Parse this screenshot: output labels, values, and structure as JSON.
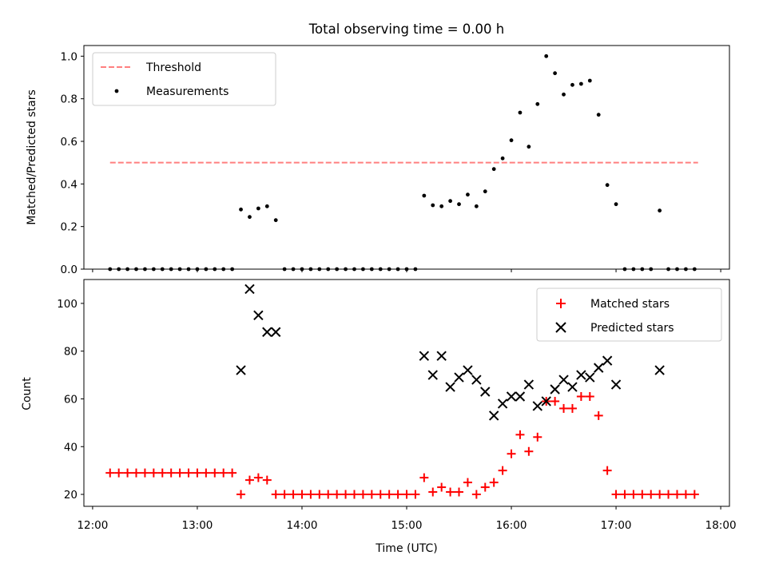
{
  "chart_data": [
    {
      "type": "scatter",
      "title": "Total observing time = 0.00 h",
      "xlabel": "",
      "ylabel": "Matched/Predicted stars",
      "ylim": [
        0,
        1.05
      ],
      "yticks": [
        "0.0",
        "0.2",
        "0.4",
        "0.6",
        "0.8",
        "1.0"
      ],
      "grid": false,
      "legend": "top-left",
      "threshold": {
        "name": "Threshold",
        "y": 0.5,
        "x_start": "12:10",
        "x_end": "17:47",
        "color": "#ff7f7f"
      },
      "series": [
        {
          "name": "Measurements",
          "color": "#000000",
          "x": [
            "12:10",
            "12:15",
            "12:20",
            "12:25",
            "12:30",
            "12:35",
            "12:40",
            "12:45",
            "12:50",
            "12:55",
            "13:00",
            "13:05",
            "13:10",
            "13:15",
            "13:20",
            "13:25",
            "13:30",
            "13:35",
            "13:40",
            "13:45",
            "13:50",
            "13:55",
            "14:00",
            "14:05",
            "14:10",
            "14:15",
            "14:20",
            "14:25",
            "14:30",
            "14:35",
            "14:40",
            "14:45",
            "14:50",
            "14:55",
            "15:00",
            "15:05",
            "15:10",
            "15:15",
            "15:20",
            "15:25",
            "15:30",
            "15:35",
            "15:40",
            "15:45",
            "15:50",
            "15:55",
            "16:00",
            "16:05",
            "16:10",
            "16:15",
            "16:20",
            "16:25",
            "16:30",
            "16:35",
            "16:40",
            "16:45",
            "16:50",
            "16:55",
            "17:00",
            "17:05",
            "17:10",
            "17:15",
            "17:20",
            "17:25",
            "17:30",
            "17:35",
            "17:40",
            "17:45"
          ],
          "values": [
            0,
            0,
            0,
            0,
            0,
            0,
            0,
            0,
            0,
            0,
            0,
            0,
            0,
            0,
            0,
            0.28,
            0.245,
            0.285,
            0.295,
            0.23,
            0,
            0,
            0,
            0,
            0,
            0,
            0,
            0,
            0,
            0,
            0,
            0,
            0,
            0,
            0,
            0,
            0.345,
            0.3,
            0.295,
            0.32,
            0.305,
            0.35,
            0.295,
            0.365,
            0.47,
            0.52,
            0.605,
            0.735,
            0.575,
            0.775,
            1.0,
            0.92,
            0.82,
            0.865,
            0.87,
            0.885,
            0.725,
            0.395,
            0.305,
            0,
            0,
            0,
            0,
            0.275,
            0,
            0,
            0,
            0
          ]
        }
      ]
    },
    {
      "type": "scatter",
      "title": "",
      "xlabel": "Time (UTC)",
      "ylabel": "Count",
      "ylim": [
        15,
        110
      ],
      "yticks": [
        "20",
        "40",
        "60",
        "80",
        "100"
      ],
      "xticks": [
        "12:00",
        "13:00",
        "14:00",
        "15:00",
        "16:00",
        "17:00",
        "18:00"
      ],
      "xlim": [
        "11:55",
        "18:05"
      ],
      "grid": false,
      "legend": "top-right",
      "series": [
        {
          "name": "Matched stars",
          "marker": "+",
          "color": "#ff0000",
          "x": [
            "12:10",
            "12:15",
            "12:20",
            "12:25",
            "12:30",
            "12:35",
            "12:40",
            "12:45",
            "12:50",
            "12:55",
            "13:00",
            "13:05",
            "13:10",
            "13:15",
            "13:20",
            "13:25",
            "13:30",
            "13:35",
            "13:40",
            "13:45",
            "13:50",
            "13:55",
            "14:00",
            "14:05",
            "14:10",
            "14:15",
            "14:20",
            "14:25",
            "14:30",
            "14:35",
            "14:40",
            "14:45",
            "14:50",
            "14:55",
            "15:00",
            "15:05",
            "15:10",
            "15:15",
            "15:20",
            "15:25",
            "15:30",
            "15:35",
            "15:40",
            "15:45",
            "15:50",
            "15:55",
            "16:00",
            "16:05",
            "16:10",
            "16:15",
            "16:20",
            "16:25",
            "16:30",
            "16:35",
            "16:40",
            "16:45",
            "16:50",
            "16:55",
            "17:00",
            "17:05",
            "17:10",
            "17:15",
            "17:20",
            "17:25",
            "17:30",
            "17:35",
            "17:40",
            "17:45"
          ],
          "values": [
            29,
            29,
            29,
            29,
            29,
            29,
            29,
            29,
            29,
            29,
            29,
            29,
            29,
            29,
            29,
            20,
            26,
            27,
            26,
            20,
            20,
            20,
            20,
            20,
            20,
            20,
            20,
            20,
            20,
            20,
            20,
            20,
            20,
            20,
            20,
            20,
            27,
            21,
            23,
            21,
            21,
            25,
            20,
            23,
            25,
            30,
            37,
            45,
            38,
            44,
            59,
            59,
            56,
            56,
            61,
            61,
            53,
            30,
            20,
            20,
            20,
            20,
            20,
            20,
            20,
            20,
            20,
            20
          ]
        },
        {
          "name": "Predicted stars",
          "marker": "x",
          "color": "#000000",
          "x": [
            "13:25",
            "13:30",
            "13:35",
            "13:40",
            "13:45",
            "15:10",
            "15:15",
            "15:20",
            "15:25",
            "15:30",
            "15:35",
            "15:40",
            "15:45",
            "15:50",
            "15:55",
            "16:00",
            "16:05",
            "16:10",
            "16:15",
            "16:20",
            "16:25",
            "16:30",
            "16:35",
            "16:40",
            "16:45",
            "16:50",
            "16:55",
            "17:00",
            "17:25"
          ],
          "values": [
            72,
            106,
            95,
            88,
            88,
            78,
            70,
            78,
            65,
            69,
            72,
            68,
            63,
            53,
            58,
            61,
            61,
            66,
            57,
            59,
            64,
            68,
            65,
            70,
            69,
            73,
            76,
            66,
            72
          ]
        }
      ]
    }
  ]
}
